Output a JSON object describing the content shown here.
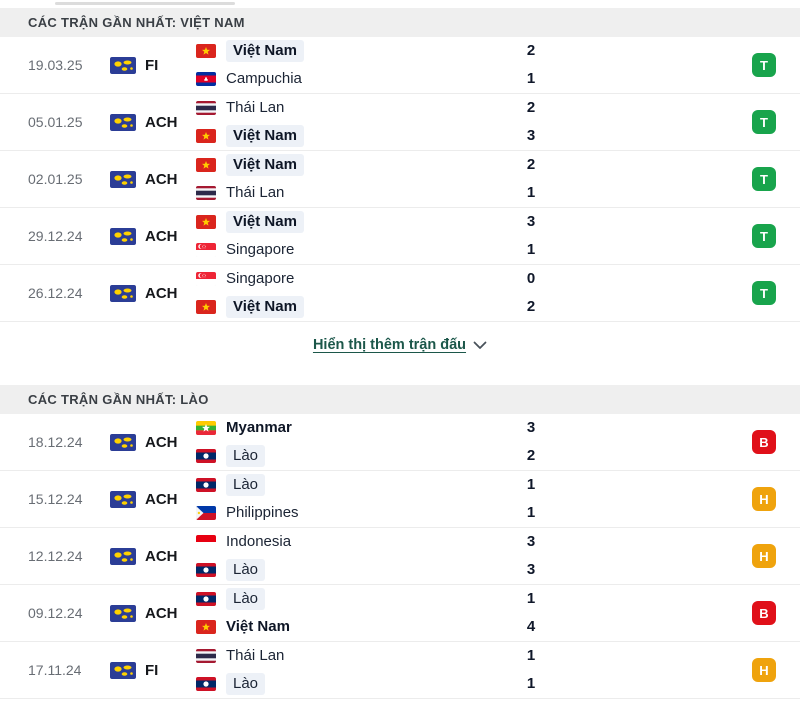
{
  "result_colors": {
    "T": "#18a44c",
    "B": "#e01019",
    "H": "#efa30d"
  },
  "icons": {
    "competition": "world-map-flag-icon",
    "show_more": "chevron-down-icon"
  },
  "sections": [
    {
      "title": "CÁC TRẬN GẦN NHẤT: VIỆT NAM",
      "show_more": {
        "label": "Hiển thị thêm trận đấu"
      },
      "matches": [
        {
          "date": "19.03.25",
          "competition": "FI",
          "home": {
            "name": "Việt Nam",
            "flag": "vietnam",
            "bold": true,
            "highlight": true
          },
          "away": {
            "name": "Campuchia",
            "flag": "cambodia",
            "bold": false,
            "highlight": false
          },
          "home_score": "2",
          "away_score": "1",
          "result": "T"
        },
        {
          "date": "05.01.25",
          "competition": "ACH",
          "home": {
            "name": "Thái Lan",
            "flag": "thailand",
            "bold": false,
            "highlight": false
          },
          "away": {
            "name": "Việt Nam",
            "flag": "vietnam",
            "bold": true,
            "highlight": true
          },
          "home_score": "2",
          "away_score": "3",
          "result": "T"
        },
        {
          "date": "02.01.25",
          "competition": "ACH",
          "home": {
            "name": "Việt Nam",
            "flag": "vietnam",
            "bold": true,
            "highlight": true
          },
          "away": {
            "name": "Thái Lan",
            "flag": "thailand",
            "bold": false,
            "highlight": false
          },
          "home_score": "2",
          "away_score": "1",
          "result": "T"
        },
        {
          "date": "29.12.24",
          "competition": "ACH",
          "home": {
            "name": "Việt Nam",
            "flag": "vietnam",
            "bold": true,
            "highlight": true
          },
          "away": {
            "name": "Singapore",
            "flag": "singapore",
            "bold": false,
            "highlight": false
          },
          "home_score": "3",
          "away_score": "1",
          "result": "T"
        },
        {
          "date": "26.12.24",
          "competition": "ACH",
          "home": {
            "name": "Singapore",
            "flag": "singapore",
            "bold": false,
            "highlight": false
          },
          "away": {
            "name": "Việt Nam",
            "flag": "vietnam",
            "bold": true,
            "highlight": true
          },
          "home_score": "0",
          "away_score": "2",
          "result": "T"
        }
      ]
    },
    {
      "title": "CÁC TRẬN GẦN NHẤT: LÀO",
      "matches": [
        {
          "date": "18.12.24",
          "competition": "ACH",
          "home": {
            "name": "Myanmar",
            "flag": "myanmar",
            "bold": true,
            "highlight": false
          },
          "away": {
            "name": "Lào",
            "flag": "laos",
            "bold": false,
            "highlight": true
          },
          "home_score": "3",
          "away_score": "2",
          "result": "B"
        },
        {
          "date": "15.12.24",
          "competition": "ACH",
          "home": {
            "name": "Lào",
            "flag": "laos",
            "bold": false,
            "highlight": true
          },
          "away": {
            "name": "Philippines",
            "flag": "philippines",
            "bold": false,
            "highlight": false
          },
          "home_score": "1",
          "away_score": "1",
          "result": "H"
        },
        {
          "date": "12.12.24",
          "competition": "ACH",
          "home": {
            "name": "Indonesia",
            "flag": "indonesia",
            "bold": false,
            "highlight": false
          },
          "away": {
            "name": "Lào",
            "flag": "laos",
            "bold": false,
            "highlight": true
          },
          "home_score": "3",
          "away_score": "3",
          "result": "H"
        },
        {
          "date": "09.12.24",
          "competition": "ACH",
          "home": {
            "name": "Lào",
            "flag": "laos",
            "bold": false,
            "highlight": true
          },
          "away": {
            "name": "Việt Nam",
            "flag": "vietnam",
            "bold": true,
            "highlight": false
          },
          "home_score": "1",
          "away_score": "4",
          "result": "B"
        },
        {
          "date": "17.11.24",
          "competition": "FI",
          "home": {
            "name": "Thái Lan",
            "flag": "thailand",
            "bold": false,
            "highlight": false
          },
          "away": {
            "name": "Lào",
            "flag": "laos",
            "bold": false,
            "highlight": true
          },
          "home_score": "1",
          "away_score": "1",
          "result": "H"
        }
      ]
    }
  ]
}
